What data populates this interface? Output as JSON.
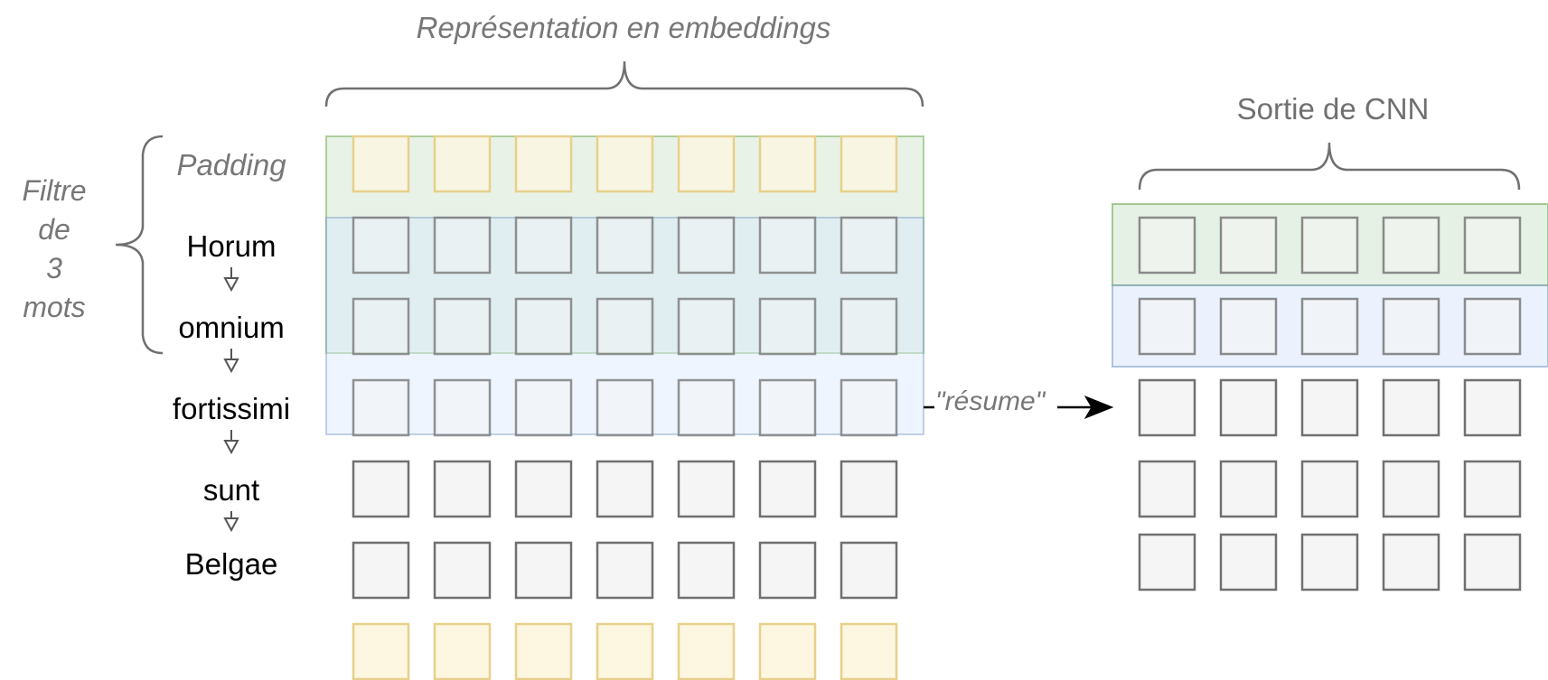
{
  "embeddings_label": "Représentation en embeddings",
  "cnn_output_label": "Sortie de CNN",
  "filter_label": [
    "Filtre",
    "de",
    "3",
    "mots"
  ],
  "padding_label": "Padding",
  "words": [
    "Horum",
    "omnium",
    "fortissimi",
    "sunt",
    "Belgae"
  ],
  "resume_label": "\"résume\"",
  "embedding_grid": {
    "columns": 7,
    "rows": [
      "padding",
      "word",
      "word",
      "word",
      "word",
      "word",
      "padding"
    ]
  },
  "output_grid": {
    "columns": 5,
    "rows": 5
  },
  "colors": {
    "box_stroke": "#707070",
    "box_fill": "#f5f5f5",
    "padding_fill": "#fdf6e0",
    "padding_stroke": "#e6d08c",
    "green_band": "#d5e8d4",
    "green_band_stroke": "#82b366",
    "blue_band": "#dae8fc",
    "blue_band_stroke": "#6c8ebf",
    "brace": "#707070"
  }
}
